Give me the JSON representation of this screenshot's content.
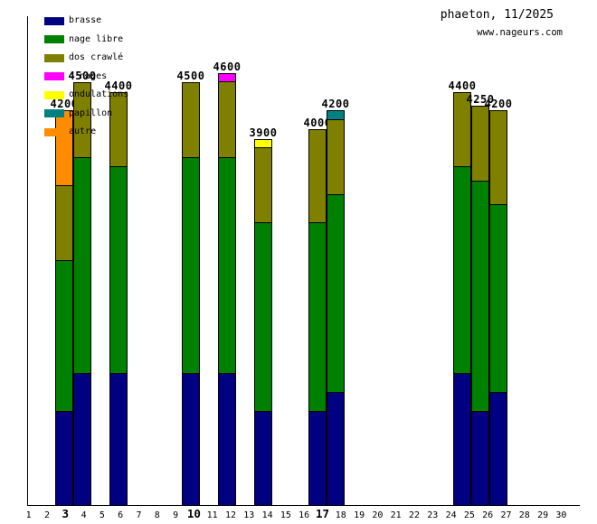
{
  "header": {
    "title": "phaeton, 11/2025",
    "site": "www.nageurs.com"
  },
  "chart_data": {
    "type": "bar",
    "stacked": true,
    "title": "phaeton, 11/2025",
    "subtitle": "www.nageurs.com",
    "unit": "m",
    "grid": false,
    "legend_position": "top-left",
    "ylim": [
      0,
      5280
    ],
    "days": [
      1,
      2,
      3,
      4,
      5,
      6,
      7,
      8,
      9,
      10,
      11,
      12,
      13,
      14,
      15,
      16,
      17,
      18,
      19,
      20,
      21,
      22,
      23,
      24,
      25,
      26,
      27,
      28,
      29,
      30
    ],
    "bold_days": [
      3,
      10,
      17
    ],
    "legend": [
      {
        "key": "brasse",
        "label": "brasse",
        "color": "#000080"
      },
      {
        "key": "nage_libre",
        "label": "nage libre",
        "color": "#008000"
      },
      {
        "key": "dos_crawle",
        "label": "dos crawlé",
        "color": "#808000"
      },
      {
        "key": "quatre_nages",
        "label": "4 nages",
        "color": "#FF00FF"
      },
      {
        "key": "ondulations",
        "label": "ondulations",
        "color": "#FFFF00"
      },
      {
        "key": "papillon",
        "label": "papillon",
        "color": "#008080"
      },
      {
        "key": "autre",
        "label": "autre",
        "color": "#FF8C00"
      }
    ],
    "bars": [
      {
        "day": 3,
        "total": 4200,
        "segments": [
          {
            "key": "brasse",
            "value": 1000
          },
          {
            "key": "nage_libre",
            "value": 1600
          },
          {
            "key": "dos_crawle",
            "value": 800
          },
          {
            "key": "autre",
            "value": 800
          }
        ]
      },
      {
        "day": 4,
        "total": 4500,
        "segments": [
          {
            "key": "brasse",
            "value": 1400
          },
          {
            "key": "nage_libre",
            "value": 2300
          },
          {
            "key": "dos_crawle",
            "value": 800
          }
        ]
      },
      {
        "day": 6,
        "total": 4400,
        "segments": [
          {
            "key": "brasse",
            "value": 1400
          },
          {
            "key": "nage_libre",
            "value": 2200
          },
          {
            "key": "dos_crawle",
            "value": 800
          }
        ]
      },
      {
        "day": 10,
        "total": 4500,
        "segments": [
          {
            "key": "brasse",
            "value": 1400
          },
          {
            "key": "nage_libre",
            "value": 2300
          },
          {
            "key": "dos_crawle",
            "value": 800
          }
        ]
      },
      {
        "day": 12,
        "total": 4600,
        "segments": [
          {
            "key": "brasse",
            "value": 1400
          },
          {
            "key": "nage_libre",
            "value": 2300
          },
          {
            "key": "dos_crawle",
            "value": 800
          },
          {
            "key": "quatre_nages",
            "value": 100
          }
        ]
      },
      {
        "day": 14,
        "total": 3900,
        "segments": [
          {
            "key": "brasse",
            "value": 1000
          },
          {
            "key": "nage_libre",
            "value": 2000
          },
          {
            "key": "dos_crawle",
            "value": 800
          },
          {
            "key": "ondulations",
            "value": 100
          }
        ]
      },
      {
        "day": 17,
        "total": 4000,
        "segments": [
          {
            "key": "brasse",
            "value": 1000
          },
          {
            "key": "nage_libre",
            "value": 2000
          },
          {
            "key": "dos_crawle",
            "value": 1000
          }
        ]
      },
      {
        "day": 18,
        "total": 4200,
        "segments": [
          {
            "key": "brasse",
            "value": 1200
          },
          {
            "key": "nage_libre",
            "value": 2100
          },
          {
            "key": "dos_crawle",
            "value": 800
          },
          {
            "key": "papillon",
            "value": 100
          }
        ]
      },
      {
        "day": 25,
        "total": 4400,
        "segments": [
          {
            "key": "brasse",
            "value": 1400
          },
          {
            "key": "nage_libre",
            "value": 2200
          },
          {
            "key": "dos_crawle",
            "value": 800
          }
        ]
      },
      {
        "day": 26,
        "total": 4250,
        "segments": [
          {
            "key": "brasse",
            "value": 1000
          },
          {
            "key": "nage_libre",
            "value": 2450
          },
          {
            "key": "dos_crawle",
            "value": 800
          }
        ]
      },
      {
        "day": 27,
        "total": 4200,
        "segments": [
          {
            "key": "brasse",
            "value": 1200
          },
          {
            "key": "nage_libre",
            "value": 2000
          },
          {
            "key": "dos_crawle",
            "value": 1000
          }
        ]
      }
    ]
  }
}
